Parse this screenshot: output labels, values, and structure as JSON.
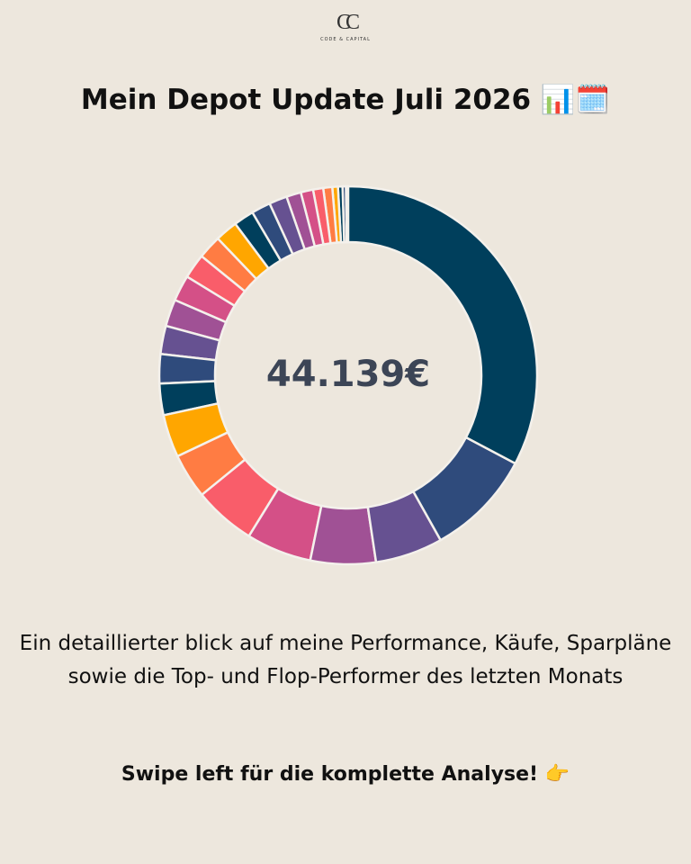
{
  "logo": {
    "monogram": "CC",
    "name": "CODE & CAPITAL"
  },
  "chart_data": {
    "type": "donut",
    "title": "Mein Depot Update Juli 2026 📊🗓️",
    "center_label": "44.139€",
    "values": [
      34,
      9.5,
      6,
      5.8,
      5.8,
      5.5,
      4,
      3.8,
      2.8,
      2.6,
      2.5,
      2.4,
      2.3,
      2.2,
      2.1,
      2.0,
      1.8,
      1.7,
      1.6,
      1.3,
      1.1,
      0.9,
      0.8,
      0.5,
      0.4,
      0.3,
      0.2
    ],
    "colors": [
      "#003f5c",
      "#2f4b7c",
      "#665191",
      "#a05195",
      "#d45087",
      "#f95d6a",
      "#ff7c43",
      "#ffa600",
      "#003f5c",
      "#2f4b7c",
      "#665191",
      "#a05195",
      "#d45087",
      "#f95d6a",
      "#ff7c43",
      "#ffa600",
      "#003f5c",
      "#2f4b7c",
      "#665191",
      "#a05195",
      "#d45087",
      "#f95d6a",
      "#ff7c43",
      "#ffa600",
      "#003f5c",
      "#2f4b7c",
      "#665191"
    ]
  },
  "description": "Ein detaillierter blick auf meine Performance, Käufe, Sparpläne sowie die Top- und Flop-Performer des letzten Monats",
  "cta": "Swipe left für die komplette Analyse! 👉"
}
